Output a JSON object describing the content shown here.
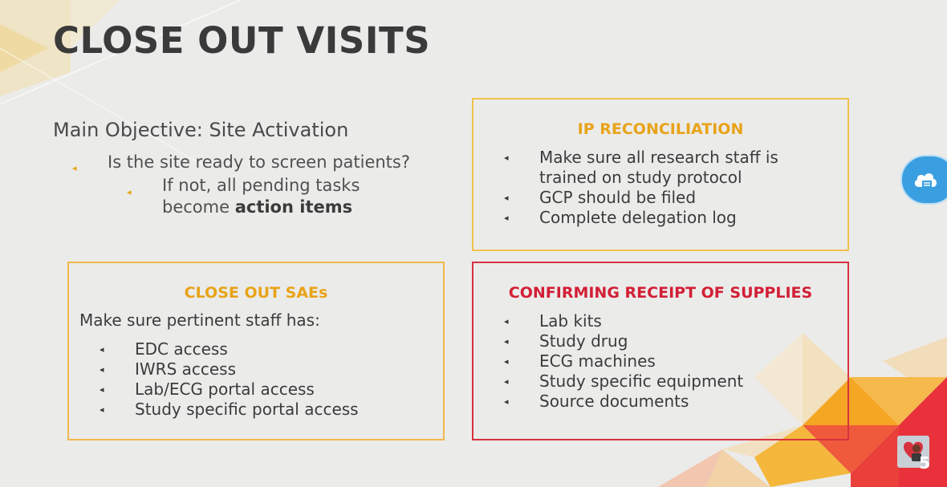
{
  "slide": {
    "title": "CLOSE OUT VISITS"
  },
  "objective": {
    "heading": "Main Objective: Site Activation",
    "bullet1": "Is the site ready to screen patients?",
    "sub_bullet_prefix_line1": "If not, all pending tasks",
    "sub_bullet_prefix_line2": "become ",
    "sub_bullet_bold": "action items"
  },
  "ip_box": {
    "title": "IP RECONCILIATION",
    "items": [
      "Make sure all research staff is trained on study protocol",
      "GCP should be filed",
      "Complete delegation log"
    ]
  },
  "sae_box": {
    "title": "CLOSE OUT SAEs",
    "intro": "Make sure pertinent staff has:",
    "items": [
      "EDC access",
      "IWRS access",
      "Lab/ECG portal access",
      "Study specific portal access"
    ]
  },
  "supplies_box": {
    "title": "CONFIRMING RECEIPT OF SUPPLIES",
    "items": [
      "Lab kits",
      "Study drug",
      "ECG machines",
      "Study specific equipment",
      "Source documents"
    ]
  },
  "overlay": {
    "cloud_icon": "cloud-upload-icon",
    "avatar_number": "5"
  },
  "colors": {
    "accent_orange": "#e8a317",
    "accent_red": "#d21f35",
    "cloud_blue": "#3a9fe0"
  }
}
